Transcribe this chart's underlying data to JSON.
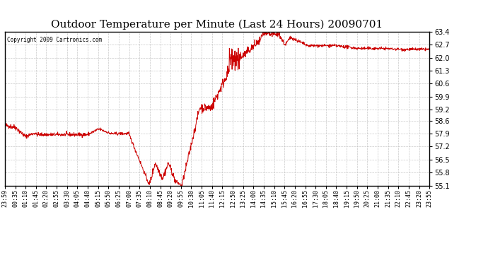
{
  "title": "Outdoor Temperature per Minute (Last 24 Hours) 20090701",
  "copyright": "Copyright 2009 Cartronics.com",
  "line_color": "#cc0000",
  "bg_color": "#ffffff",
  "grid_color": "#bbbbbb",
  "ylim": [
    55.1,
    63.4
  ],
  "yticks": [
    55.1,
    55.8,
    56.5,
    57.2,
    57.9,
    58.6,
    59.2,
    59.9,
    60.6,
    61.3,
    62.0,
    62.7,
    63.4
  ],
  "xtick_labels": [
    "23:59",
    "00:35",
    "01:10",
    "01:45",
    "02:20",
    "02:55",
    "03:30",
    "04:05",
    "04:40",
    "05:15",
    "05:50",
    "06:25",
    "07:00",
    "07:35",
    "08:10",
    "08:45",
    "09:20",
    "09:55",
    "10:30",
    "11:05",
    "11:40",
    "12:15",
    "12:50",
    "13:25",
    "14:00",
    "14:35",
    "15:10",
    "15:45",
    "16:20",
    "16:55",
    "17:30",
    "18:05",
    "18:40",
    "19:15",
    "19:50",
    "20:25",
    "21:00",
    "21:35",
    "22:10",
    "22:45",
    "23:20",
    "23:55"
  ],
  "title_fontsize": 11,
  "tick_fontsize": 7,
  "xtick_fontsize": 6
}
